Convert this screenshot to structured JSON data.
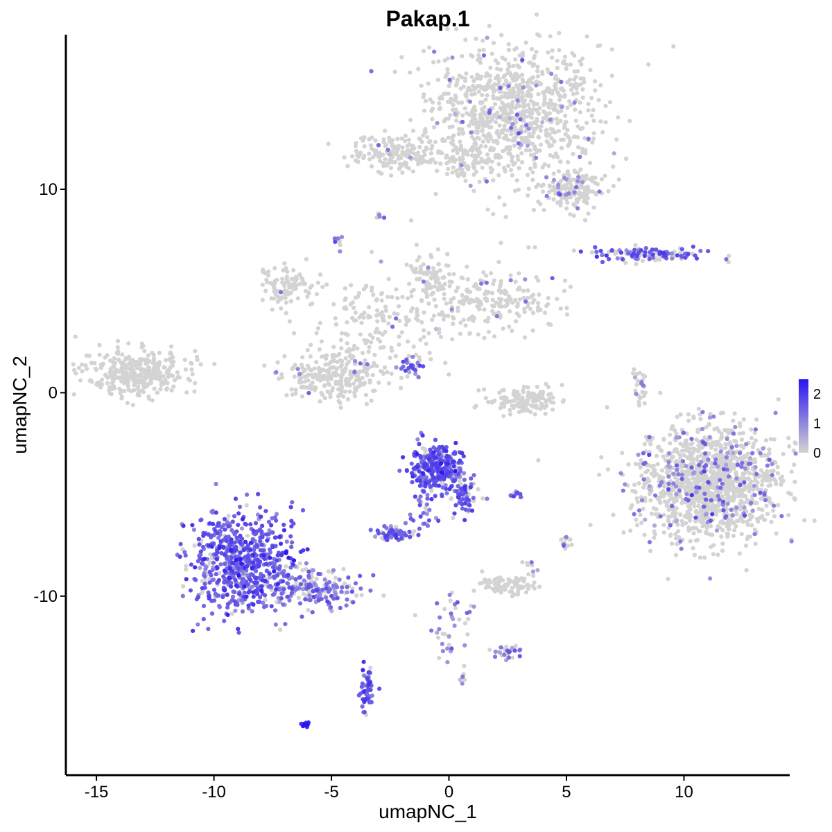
{
  "chart_data": {
    "type": "scatter",
    "title": "Pakap.1",
    "xlabel": "umapNC_1",
    "ylabel": "umapNC_2",
    "xlim": [
      -16.3,
      14.5
    ],
    "ylim": [
      -18.8,
      17.6
    ],
    "xticks": [
      -15,
      -10,
      -5,
      0,
      5,
      10
    ],
    "xtick_labels": [
      "-15",
      "-10",
      "-5",
      "0",
      "5",
      "10"
    ],
    "yticks": [
      -10,
      0,
      10
    ],
    "ytick_labels": [
      "-10",
      "0",
      "10"
    ],
    "grid": false,
    "legend": {
      "placement": "right",
      "type": "colorbar",
      "min": 0,
      "max": 2.5,
      "ticks": [
        0,
        1,
        2
      ],
      "tick_labels": [
        "0",
        "1",
        "2"
      ]
    },
    "color_low": "#d3d3d3",
    "color_high": "#2a14f0",
    "series": [
      {
        "cluster": "top-right-large",
        "cx": 2.7,
        "cy": 13.8,
        "sx": 1.8,
        "sy": 1.6,
        "n": 900,
        "expr_frac": 0.05,
        "expr_level": 1.0
      },
      {
        "cluster": "top-right-tail",
        "cx": 5.2,
        "cy": 10.0,
        "sx": 0.7,
        "sy": 0.5,
        "n": 160,
        "expr_frac": 0.08,
        "expr_level": 1.0
      },
      {
        "cluster": "top-mid-left",
        "cx": -2.3,
        "cy": 11.7,
        "sx": 0.9,
        "sy": 0.45,
        "n": 160,
        "expr_frac": 0.02,
        "expr_level": 1.0
      },
      {
        "cluster": "top-bridge",
        "cx": 0.8,
        "cy": 11.4,
        "sx": 0.7,
        "sy": 0.35,
        "n": 70,
        "expr_frac": 0.0,
        "expr_level": 0.0
      },
      {
        "cluster": "right-streak",
        "cx": 8.5,
        "cy": 6.8,
        "sx": 1.2,
        "sy": 0.18,
        "n": 120,
        "expr_frac": 0.55,
        "expr_level": 1.5
      },
      {
        "cluster": "middle-left-arm",
        "cx": -6.9,
        "cy": 5.3,
        "sx": 0.6,
        "sy": 0.5,
        "n": 90,
        "expr_frac": 0.02,
        "expr_level": 1.0
      },
      {
        "cluster": "middle-center",
        "cx": -3.0,
        "cy": 3.5,
        "sx": 1.6,
        "sy": 1.3,
        "n": 200,
        "expr_frac": 0.02,
        "expr_level": 1.0
      },
      {
        "cluster": "middle-right-arm",
        "cx": 1.7,
        "cy": 4.5,
        "sx": 1.4,
        "sy": 0.8,
        "n": 220,
        "expr_frac": 0.02,
        "expr_level": 1.0
      },
      {
        "cluster": "middle-upper",
        "cx": -0.8,
        "cy": 5.6,
        "sx": 0.5,
        "sy": 0.5,
        "n": 60,
        "expr_frac": 0.02,
        "expr_level": 1.0
      },
      {
        "cluster": "middle-bottom-left",
        "cx": -5.5,
        "cy": 0.8,
        "sx": 0.8,
        "sy": 0.6,
        "n": 120,
        "expr_frac": 0.02,
        "expr_level": 1.0
      },
      {
        "cluster": "middle-bottom-right",
        "cx": -4.1,
        "cy": 0.8,
        "sx": 0.7,
        "sy": 0.6,
        "n": 120,
        "expr_frac": 0.02,
        "expr_level": 1.0
      },
      {
        "cluster": "left-cluster",
        "cx": -13.3,
        "cy": 1.0,
        "sx": 1.1,
        "sy": 0.55,
        "n": 320,
        "expr_frac": 0.0,
        "expr_level": 0.0
      },
      {
        "cluster": "center-right-arc",
        "cx": 3.3,
        "cy": -0.4,
        "sx": 0.8,
        "sy": 0.35,
        "n": 140,
        "expr_frac": 0.0,
        "expr_level": 0.0
      },
      {
        "cluster": "right-large-blob",
        "cx": 11.0,
        "cy": -4.4,
        "sx": 1.5,
        "sy": 1.4,
        "n": 1300,
        "expr_frac": 0.12,
        "expr_level": 1.1
      },
      {
        "cluster": "bottom-left-large",
        "cx": -8.8,
        "cy": -8.3,
        "sx": 1.1,
        "sy": 1.2,
        "n": 700,
        "expr_frac": 0.85,
        "expr_level": 1.5
      },
      {
        "cluster": "bottom-left-tail",
        "cx": -5.7,
        "cy": -9.6,
        "sx": 1.0,
        "sy": 0.45,
        "n": 180,
        "expr_frac": 0.65,
        "expr_level": 1.2
      },
      {
        "cluster": "center-bottom",
        "cx": -0.5,
        "cy": -3.8,
        "sx": 0.55,
        "sy": 0.6,
        "n": 300,
        "expr_frac": 0.85,
        "expr_level": 1.6
      },
      {
        "cluster": "center-bottom-tail",
        "cx": 0.7,
        "cy": -5.2,
        "sx": 0.35,
        "sy": 0.4,
        "n": 60,
        "expr_frac": 0.8,
        "expr_level": 1.5
      },
      {
        "cluster": "small-mid-left",
        "cx": -2.4,
        "cy": -6.9,
        "sx": 0.35,
        "sy": 0.18,
        "n": 60,
        "expr_frac": 0.85,
        "expr_level": 1.4
      },
      {
        "cluster": "small-mid-right",
        "cx": 2.4,
        "cy": -9.5,
        "sx": 0.5,
        "sy": 0.2,
        "n": 80,
        "expr_frac": 0.0,
        "expr_level": 0.0
      },
      {
        "cluster": "bottom-right-small",
        "cx": 2.5,
        "cy": -12.7,
        "sx": 0.3,
        "sy": 0.15,
        "n": 30,
        "expr_frac": 0.7,
        "expr_level": 1.3
      },
      {
        "cluster": "bottom-small-1",
        "cx": -3.5,
        "cy": -14.6,
        "sx": 0.15,
        "sy": 0.55,
        "n": 60,
        "expr_frac": 0.9,
        "expr_level": 1.5
      },
      {
        "cluster": "bottom-small-2",
        "cx": -6.1,
        "cy": -16.3,
        "sx": 0.1,
        "sy": 0.08,
        "n": 12,
        "expr_frac": 1.0,
        "expr_level": 2.4
      },
      {
        "cluster": "far-right-streak",
        "cx": 8.1,
        "cy": 0.2,
        "sx": 0.12,
        "sy": 0.5,
        "n": 25,
        "expr_frac": 0.2,
        "expr_level": 1.0
      },
      {
        "cluster": "right-bottom-small",
        "cx": 5.0,
        "cy": -7.3,
        "sx": 0.15,
        "sy": 0.25,
        "n": 14,
        "expr_frac": 0.3,
        "expr_level": 1.0
      },
      {
        "cluster": "stick-1",
        "cx": -1.7,
        "cy": 1.2,
        "sx": 0.3,
        "sy": 0.3,
        "n": 20,
        "expr_frac": 0.9,
        "expr_level": 1.3
      },
      {
        "cluster": "stick-2",
        "cx": 0.1,
        "cy": -11.2,
        "sx": 0.5,
        "sy": 1.0,
        "n": 40,
        "expr_frac": 0.5,
        "expr_level": 1.0
      },
      {
        "cluster": "stick-3",
        "cx": -1.1,
        "cy": -6.0,
        "sx": 0.3,
        "sy": 0.5,
        "n": 25,
        "expr_frac": 0.8,
        "expr_level": 1.3
      },
      {
        "cluster": "small-near-10",
        "cx": -2.9,
        "cy": 8.7,
        "sx": 0.1,
        "sy": 0.1,
        "n": 8,
        "expr_frac": 0.3,
        "expr_level": 1.0
      },
      {
        "cluster": "small-top-mid",
        "cx": -4.7,
        "cy": 7.4,
        "sx": 0.1,
        "sy": 0.15,
        "n": 10,
        "expr_frac": 0.3,
        "expr_level": 1.0
      },
      {
        "cluster": "small-right-near",
        "cx": 2.8,
        "cy": -5.0,
        "sx": 0.2,
        "sy": 0.1,
        "n": 12,
        "expr_frac": 0.9,
        "expr_level": 1.5
      },
      {
        "cluster": "small-bottom-center",
        "cx": 0.6,
        "cy": -14.0,
        "sx": 0.1,
        "sy": 0.1,
        "n": 6,
        "expr_frac": 0.4,
        "expr_level": 1.0
      },
      {
        "cluster": "small-right-mid",
        "cx": 3.4,
        "cy": -8.7,
        "sx": 0.15,
        "sy": 0.35,
        "n": 10,
        "expr_frac": 0.2,
        "expr_level": 1.0
      }
    ]
  }
}
